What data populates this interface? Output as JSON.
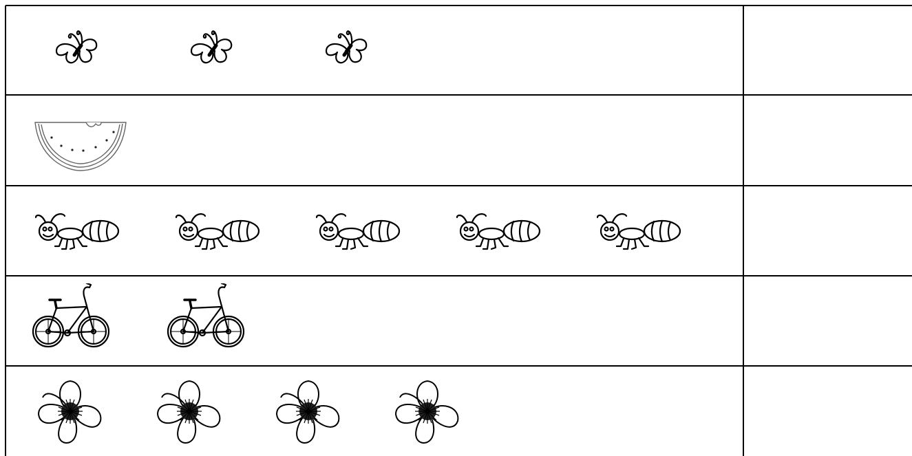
{
  "table": {
    "rows": [
      {
        "count": 3
      },
      {
        "count": 1
      },
      {
        "count": 5
      },
      {
        "count": 2
      },
      {
        "count": 4
      }
    ]
  }
}
